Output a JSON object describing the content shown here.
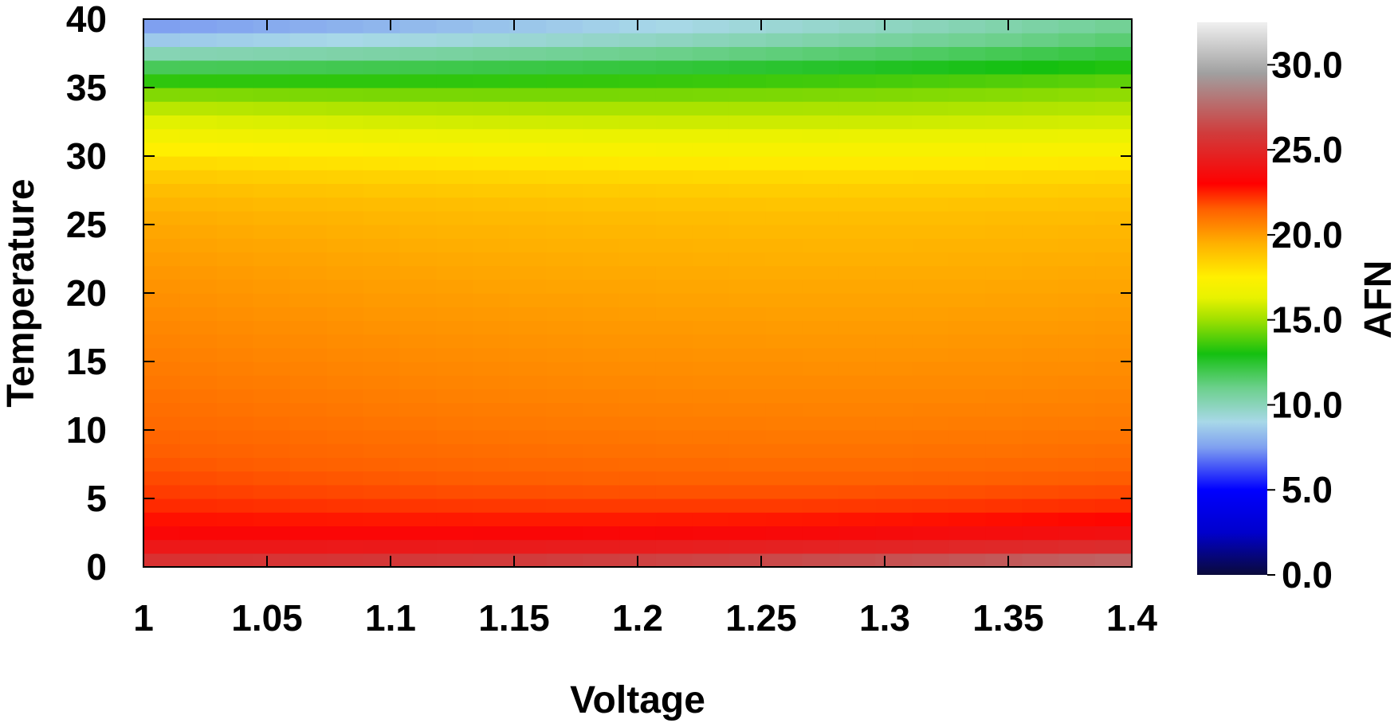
{
  "chart_data": {
    "type": "heatmap",
    "xlabel": "Voltage",
    "ylabel": "Temperature",
    "colorbar_label": "AFN",
    "xlim": [
      1.0,
      1.4
    ],
    "ylim": [
      0,
      40
    ],
    "x_ticks": [
      "1",
      "1.05",
      "1.1",
      "1.15",
      "1.2",
      "1.25",
      "1.3",
      "1.35",
      "1.4"
    ],
    "y_ticks": [
      "0",
      "5",
      "10",
      "15",
      "20",
      "25",
      "30",
      "35",
      "40"
    ],
    "colorbar_range": [
      0,
      32.5
    ],
    "colorbar_ticks": [
      "0.0",
      "5.0",
      "10.0",
      "15.0",
      "20.0",
      "25.0",
      "30.0"
    ],
    "grid": "x 1.0–1.4 in 27 columns × temperature 0–40 in 40 rows; z = AFN estimated from the color scale",
    "colormap": [
      {
        "v": 0,
        "color": "#0a0a3a"
      },
      {
        "v": 2.5,
        "color": "#0000cc"
      },
      {
        "v": 5,
        "color": "#0000ff"
      },
      {
        "v": 7.5,
        "color": "#7fa0f0"
      },
      {
        "v": 9,
        "color": "#a8d8e8"
      },
      {
        "v": 11,
        "color": "#6cd08c"
      },
      {
        "v": 13,
        "color": "#14c010"
      },
      {
        "v": 15,
        "color": "#9fe000"
      },
      {
        "v": 16.3,
        "color": "#e8f200"
      },
      {
        "v": 17.5,
        "color": "#fff000"
      },
      {
        "v": 19.5,
        "color": "#ffb000"
      },
      {
        "v": 21.5,
        "color": "#ff6000"
      },
      {
        "v": 23,
        "color": "#ff0000"
      },
      {
        "v": 26,
        "color": "#d03c3c"
      },
      {
        "v": 29.5,
        "color": "#a0a0a0"
      },
      {
        "v": 32.5,
        "color": "#f0f0f0"
      }
    ]
  }
}
